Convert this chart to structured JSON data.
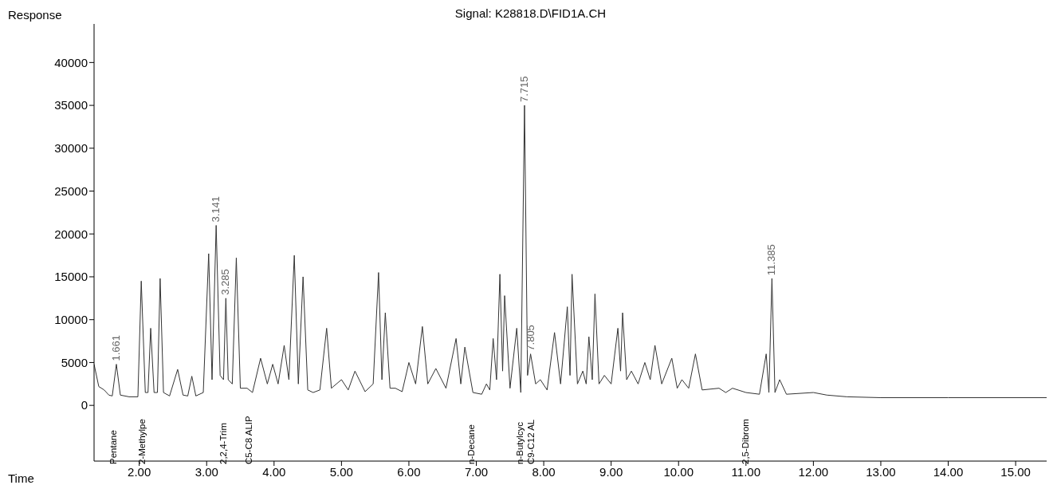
{
  "chart_data": {
    "type": "line",
    "title": "Signal: K28818.D\\FID1A.CH",
    "xlabel": "Time",
    "ylabel": "Response",
    "xlim": [
      1.33,
      15.46
    ],
    "ylim": [
      -6500,
      44500
    ],
    "xticks": [
      {
        "value": 2,
        "label": "2.00"
      },
      {
        "value": 3,
        "label": "3.00"
      },
      {
        "value": 4,
        "label": "4.00"
      },
      {
        "value": 5,
        "label": "5.00"
      },
      {
        "value": 6,
        "label": "6.00"
      },
      {
        "value": 7,
        "label": "7.00"
      },
      {
        "value": 8,
        "label": "8.00"
      },
      {
        "value": 9,
        "label": "9.00"
      },
      {
        "value": 10,
        "label": "10.00"
      },
      {
        "value": 11,
        "label": "11.00"
      },
      {
        "value": 12,
        "label": "12.00"
      },
      {
        "value": 13,
        "label": "13.00"
      },
      {
        "value": 14,
        "label": "14.00"
      },
      {
        "value": 15,
        "label": "15.00"
      }
    ],
    "yticks": [
      0,
      5000,
      10000,
      15000,
      20000,
      25000,
      30000,
      35000,
      40000
    ],
    "marker": "none",
    "line_style": "solid",
    "series": [
      {
        "color": "#333333",
        "x": [
          1.33,
          1.4,
          1.48,
          1.55,
          1.6,
          1.661,
          1.72,
          1.85,
          1.98,
          2.03,
          2.09,
          2.13,
          2.17,
          2.22,
          2.27,
          2.31,
          2.36,
          2.45,
          2.57,
          2.65,
          2.72,
          2.78,
          2.84,
          2.95,
          3.03,
          3.08,
          3.141,
          3.2,
          3.25,
          3.285,
          3.32,
          3.38,
          3.44,
          3.5,
          3.6,
          3.68,
          3.8,
          3.9,
          3.98,
          4.06,
          4.15,
          4.22,
          4.3,
          4.36,
          4.43,
          4.5,
          4.58,
          4.68,
          4.78,
          4.85,
          5.0,
          5.1,
          5.2,
          5.35,
          5.47,
          5.55,
          5.6,
          5.65,
          5.72,
          5.8,
          5.9,
          6.0,
          6.1,
          6.2,
          6.28,
          6.4,
          6.55,
          6.7,
          6.77,
          6.83,
          6.95,
          7.08,
          7.15,
          7.2,
          7.25,
          7.3,
          7.35,
          7.39,
          7.42,
          7.5,
          7.6,
          7.66,
          7.715,
          7.76,
          7.805,
          7.88,
          7.95,
          8.05,
          8.16,
          8.25,
          8.35,
          8.39,
          8.42,
          8.5,
          8.58,
          8.63,
          8.67,
          8.72,
          8.76,
          8.82,
          8.9,
          9.0,
          9.1,
          9.14,
          9.17,
          9.23,
          9.3,
          9.4,
          9.5,
          9.58,
          9.65,
          9.75,
          9.9,
          9.98,
          10.05,
          10.15,
          10.25,
          10.35,
          10.6,
          10.7,
          10.8,
          11.0,
          11.2,
          11.3,
          11.34,
          11.385,
          11.43,
          11.5,
          11.6,
          12.0,
          12.2,
          12.5,
          13.0,
          14.0,
          15.46
        ],
        "values": [
          4800,
          2200,
          1800,
          1200,
          1100,
          4800,
          1200,
          1000,
          1000,
          14500,
          1500,
          1500,
          9000,
          1500,
          1500,
          14800,
          1500,
          1100,
          4200,
          1200,
          1100,
          3400,
          1100,
          1500,
          17700,
          3000,
          21000,
          3500,
          3000,
          12500,
          3000,
          2500,
          17200,
          2000,
          2000,
          1500,
          5500,
          2500,
          4800,
          2500,
          7000,
          3000,
          17500,
          2500,
          15000,
          1800,
          1500,
          1800,
          9000,
          2000,
          3000,
          1800,
          4000,
          1600,
          2500,
          15500,
          3000,
          10800,
          2000,
          2000,
          1600,
          5000,
          2500,
          9200,
          2500,
          4300,
          2000,
          7800,
          2500,
          6800,
          1500,
          1300,
          2500,
          1800,
          7800,
          3000,
          15300,
          4000,
          12800,
          2000,
          9000,
          1500,
          35000,
          3500,
          6000,
          2500,
          3000,
          1800,
          8500,
          2500,
          11500,
          3500,
          15300,
          2500,
          4000,
          2500,
          8000,
          3000,
          13000,
          2500,
          3500,
          2500,
          9000,
          4000,
          10800,
          3000,
          4000,
          2500,
          5000,
          3000,
          7000,
          2500,
          5500,
          2000,
          3000,
          2000,
          6000,
          1800,
          2000,
          1500,
          2000,
          1500,
          1300,
          6000,
          1500,
          14800,
          1500,
          3000,
          1300,
          1500,
          1200,
          1000,
          900,
          900,
          900
        ]
      }
    ],
    "annotations": [
      {
        "text": "1.661",
        "x": 1.661,
        "y": 4800
      },
      {
        "text": "3.141",
        "x": 3.141,
        "y": 21000
      },
      {
        "text": "3.285",
        "x": 3.285,
        "y": 12500
      },
      {
        "text": "7.715",
        "x": 7.715,
        "y": 35000
      },
      {
        "text": "7.805",
        "x": 7.805,
        "y": 6000
      },
      {
        "text": "11.385",
        "x": 11.385,
        "y": 14800
      },
      "Pentane",
      "2-Methylpe",
      "2,2,4-Trim",
      "C5-C8 ALIP",
      "n-Decane",
      "n-Butylcyc",
      "C9-C12 AL",
      "2,5-Dibrom"
    ]
  }
}
